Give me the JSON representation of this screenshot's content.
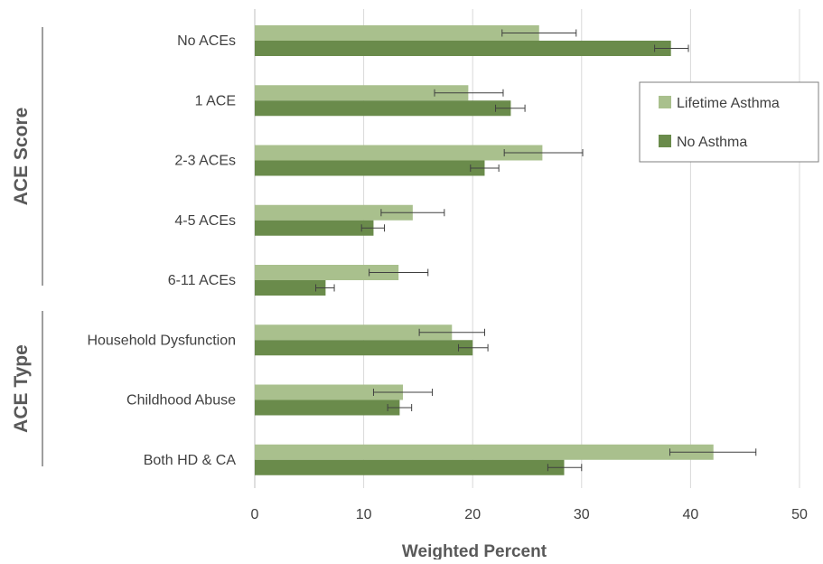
{
  "chart_data": {
    "type": "bar",
    "orientation": "horizontal",
    "categories": [
      "No ACEs",
      "1 ACE",
      "2-3 ACEs",
      "4-5 ACEs",
      "6-11 ACEs",
      "Household Dysfunction",
      "Childhood Abuse",
      "Both HD & CA"
    ],
    "groups": [
      {
        "label": "ACE Score",
        "categories": [
          "No ACEs",
          "1 ACE",
          "2-3 ACEs",
          "4-5 ACEs",
          "6-11 ACEs"
        ]
      },
      {
        "label": "ACE Type",
        "categories": [
          "Household Dysfunction",
          "Childhood Abuse",
          "Both HD & CA"
        ]
      }
    ],
    "series": [
      {
        "name": "Lifetime Asthma",
        "color": "#a9c08d",
        "values": [
          26.1,
          19.6,
          26.4,
          14.5,
          13.2,
          18.1,
          13.6,
          42.1
        ],
        "error_low": [
          22.7,
          16.5,
          22.9,
          11.6,
          10.5,
          15.1,
          10.9,
          38.1
        ],
        "error_high": [
          29.5,
          22.8,
          30.1,
          17.4,
          15.9,
          21.1,
          16.3,
          46.0
        ]
      },
      {
        "name": "No Asthma",
        "color": "#6a8b4b",
        "values": [
          38.2,
          23.5,
          21.1,
          10.9,
          6.5,
          20.0,
          13.3,
          28.4
        ],
        "error_low": [
          36.7,
          22.1,
          19.8,
          9.8,
          5.6,
          18.7,
          12.2,
          26.9
        ],
        "error_high": [
          39.8,
          24.8,
          22.4,
          11.9,
          7.3,
          21.4,
          14.4,
          30.0
        ]
      }
    ],
    "xlabel": "Weighted Percent",
    "xlim": [
      0,
      50
    ],
    "xticks": [
      0,
      10,
      20,
      30,
      40,
      50
    ],
    "grid": true,
    "legend_position": "right"
  }
}
